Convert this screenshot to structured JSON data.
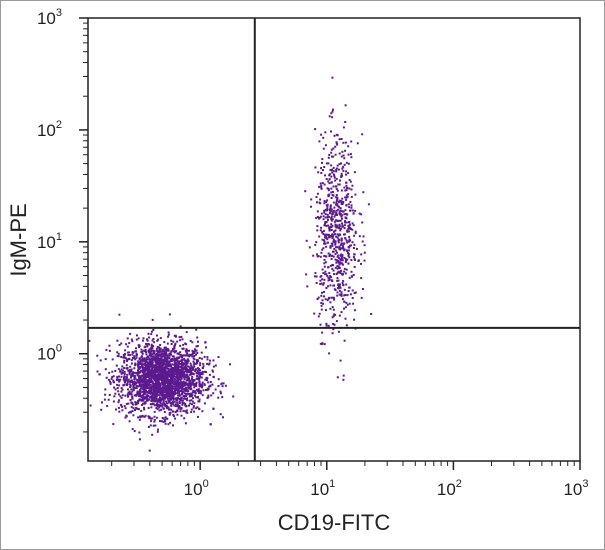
{
  "chart_data": {
    "type": "scatter",
    "title": "",
    "xlabel": "CD19-FITC",
    "ylabel": "IgM-PE",
    "x_scale": "log",
    "y_scale": "log",
    "xlim": [
      0.13,
      1000
    ],
    "ylim": [
      0.11,
      1000
    ],
    "x_ticks": [
      {
        "base": "10",
        "exp": "0",
        "value": 1
      },
      {
        "base": "10",
        "exp": "1",
        "value": 10
      },
      {
        "base": "10",
        "exp": "2",
        "value": 100
      },
      {
        "base": "10",
        "exp": "3",
        "value": 1000
      }
    ],
    "y_ticks": [
      {
        "base": "10",
        "exp": "0",
        "value": 1
      },
      {
        "base": "10",
        "exp": "1",
        "value": 10
      },
      {
        "base": "10",
        "exp": "2",
        "value": 100
      },
      {
        "base": "10",
        "exp": "3",
        "value": 1000
      }
    ],
    "quadrant_gates": {
      "x": 2.7,
      "y": 1.7
    },
    "grid": false,
    "point_color": "#5b1a8e",
    "populations": [
      {
        "label": "",
        "center": [
          0.5,
          0.6
        ],
        "count": 2400,
        "spread_log": [
          0.17,
          0.16
        ]
      },
      {
        "label": "",
        "center": [
          12,
          12
        ],
        "count": 720,
        "spread_log": [
          0.085,
          0.42
        ]
      }
    ]
  }
}
